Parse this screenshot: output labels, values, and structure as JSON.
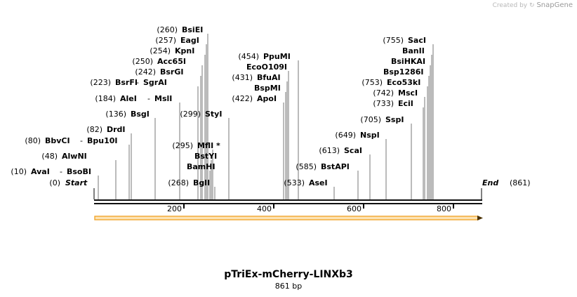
{
  "watermark": {
    "prefix": "Created by",
    "brand": "SnapGene"
  },
  "title": "pTriEx-mCherry-LINXb3",
  "subtitle": "861 bp",
  "ends": {
    "start_pos": "(0)",
    "start": "Start",
    "end": "End",
    "end_pos": "(861)"
  },
  "ticks": [
    "200",
    "400",
    "600",
    "800"
  ],
  "sites": [
    {
      "pos": "(260)",
      "name": "BsiEI"
    },
    {
      "pos": "(257)",
      "name": "EagI"
    },
    {
      "pos": "(254)",
      "name": "KpnI"
    },
    {
      "pos": "(250)",
      "name": "Acc65I"
    },
    {
      "pos": "(242)",
      "name": "BsrGI"
    },
    {
      "pos": "(223)",
      "name": "BsrFI",
      "name2": "SgrAI"
    },
    {
      "pos": "(184)",
      "name": "AleI",
      "name2": "MslI"
    },
    {
      "pos": "(136)",
      "name": "BsgI"
    },
    {
      "pos": "(82)",
      "name": "DrdI"
    },
    {
      "pos": "(80)",
      "name": "BbvCI",
      "name2": "Bpu10I"
    },
    {
      "pos": "(48)",
      "name": "AlwNI"
    },
    {
      "pos": "(10)",
      "name": "AvaI",
      "name2": "BsoBI"
    },
    {
      "pos": "(299)",
      "name": "StyI"
    },
    {
      "pos": "(295)",
      "name": "MflI *"
    },
    {
      "pos": "",
      "name": "BstYI"
    },
    {
      "pos": "",
      "name": "BamHI"
    },
    {
      "pos": "(268)",
      "name": "BglI"
    },
    {
      "pos": "(454)",
      "name": "PpuMI"
    },
    {
      "pos": "",
      "name": "EcoO109I"
    },
    {
      "pos": "(431)",
      "name": "BfuAI"
    },
    {
      "pos": "",
      "name": "BspMI"
    },
    {
      "pos": "(422)",
      "name": "ApoI"
    },
    {
      "pos": "(533)",
      "name": "AseI"
    },
    {
      "pos": "(585)",
      "name": "BstAPI"
    },
    {
      "pos": "(613)",
      "name": "ScaI"
    },
    {
      "pos": "(649)",
      "name": "NspI"
    },
    {
      "pos": "(705)",
      "name": "SspI"
    },
    {
      "pos": "(733)",
      "name": "EciI"
    },
    {
      "pos": "(742)",
      "name": "MscI"
    },
    {
      "pos": "(753)",
      "name": "Eco53kI"
    },
    {
      "pos": "",
      "name": "Bsp1286I"
    },
    {
      "pos": "",
      "name": "BsiHKAI"
    },
    {
      "pos": "",
      "name": "BanII"
    },
    {
      "pos": "(755)",
      "name": "SacI"
    }
  ],
  "colors": {
    "feature_arrow": "#f0a020",
    "feature_fill": "#fce3b5",
    "backbone": "#111111"
  }
}
